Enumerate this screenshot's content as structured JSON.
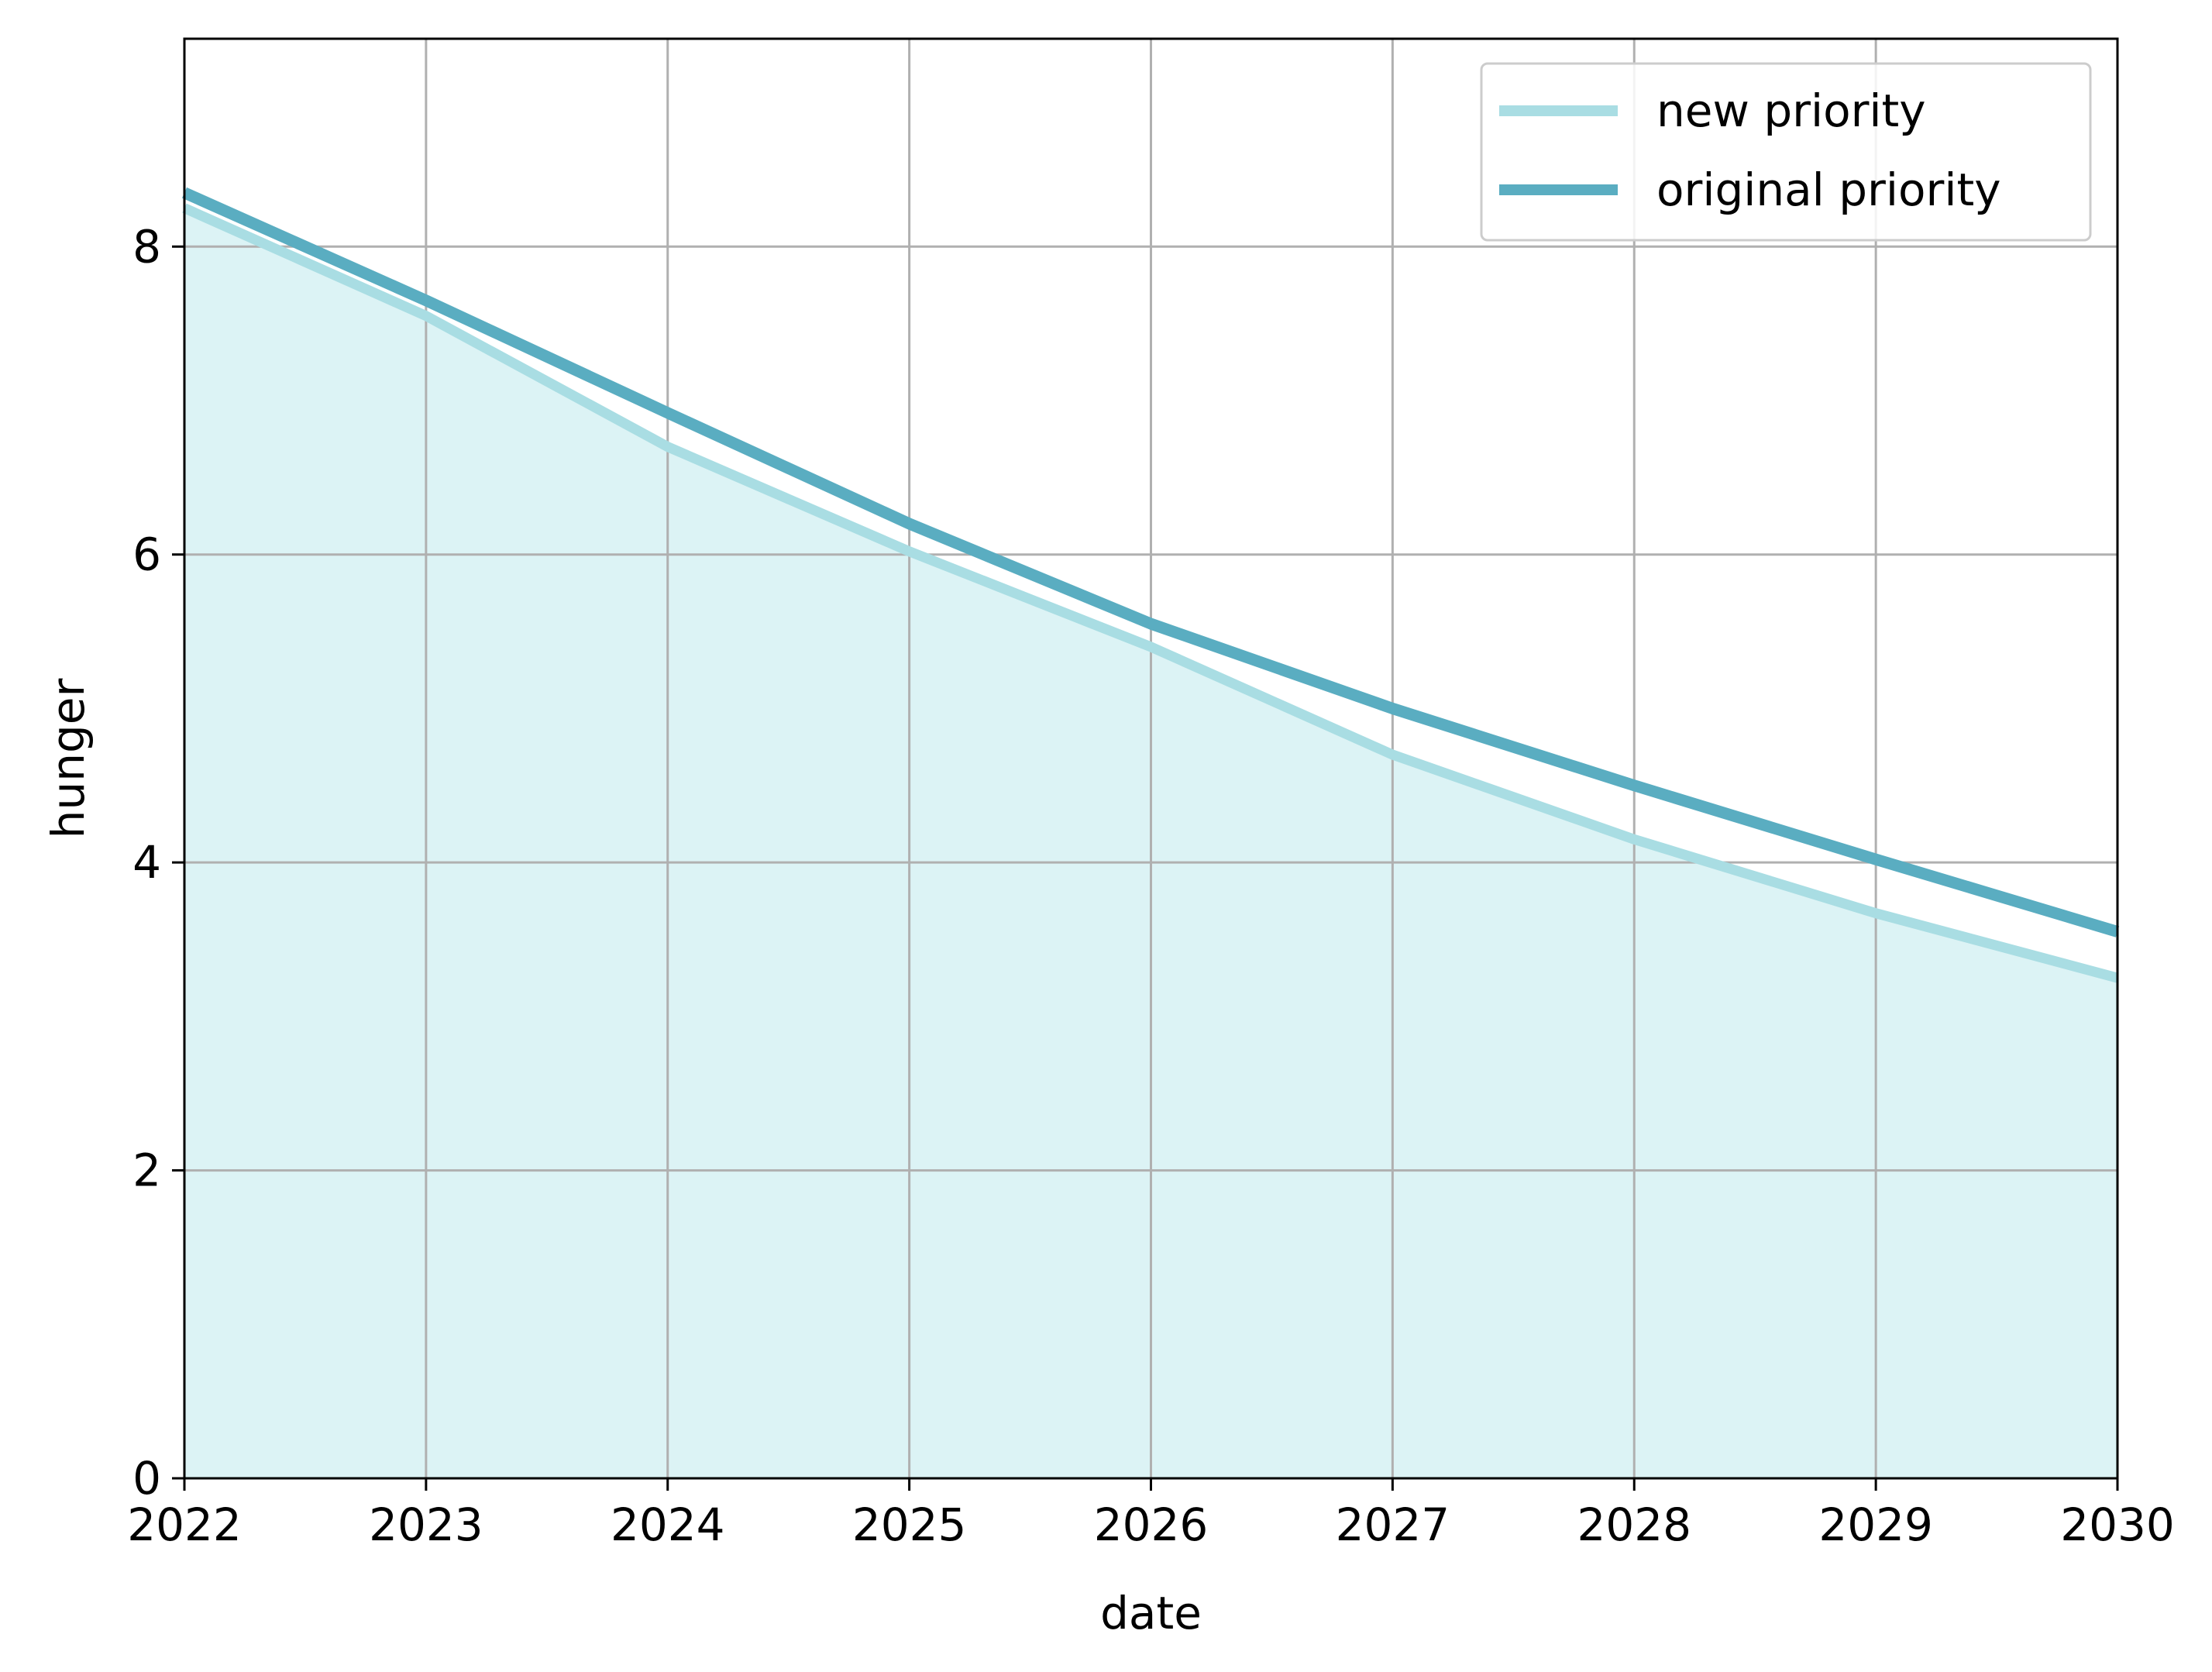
{
  "chart_data": {
    "type": "line",
    "xlabel": "date",
    "ylabel": "hunger",
    "xlim": [
      2022,
      2030
    ],
    "ylim": [
      0,
      9.35
    ],
    "x_ticks": [
      "2022",
      "2023",
      "2024",
      "2025",
      "2026",
      "2027",
      "2028",
      "2029",
      "2030"
    ],
    "y_ticks": [
      "0",
      "2",
      "4",
      "6",
      "8"
    ],
    "grid": true,
    "legend_position": "top-right",
    "x": [
      2022,
      2023,
      2024,
      2025,
      2026,
      2027,
      2028,
      2029,
      2030
    ],
    "series": [
      {
        "name": "new priority",
        "values": [
          8.25,
          7.55,
          6.7,
          6.02,
          5.4,
          4.7,
          4.15,
          3.67,
          3.25
        ],
        "color": "#a9dde3",
        "fill_below": true,
        "fill_color": "#dcf3f5"
      },
      {
        "name": "original priority",
        "values": [
          8.35,
          7.65,
          6.92,
          6.2,
          5.55,
          5.0,
          4.5,
          4.02,
          3.55
        ],
        "color": "#5aadc1"
      }
    ]
  }
}
